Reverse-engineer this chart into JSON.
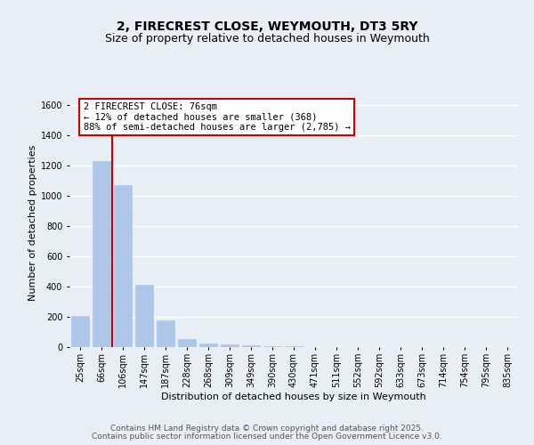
{
  "title_line1": "2, FIRECREST CLOSE, WEYMOUTH, DT3 5RY",
  "title_line2": "Size of property relative to detached houses in Weymouth",
  "xlabel": "Distribution of detached houses by size in Weymouth",
  "ylabel": "Number of detached properties",
  "categories": [
    "25sqm",
    "66sqm",
    "106sqm",
    "147sqm",
    "187sqm",
    "228sqm",
    "268sqm",
    "309sqm",
    "349sqm",
    "390sqm",
    "430sqm",
    "471sqm",
    "511sqm",
    "552sqm",
    "592sqm",
    "633sqm",
    "673sqm",
    "714sqm",
    "754sqm",
    "795sqm",
    "835sqm"
  ],
  "values": [
    205,
    1230,
    1070,
    415,
    178,
    52,
    25,
    15,
    10,
    5,
    3,
    2,
    1,
    1,
    1,
    1,
    0,
    0,
    0,
    0,
    0
  ],
  "bar_color": "#aec6e8",
  "bar_edge_color": "#aec6e8",
  "property_line_x": 1.5,
  "annotation_title": "2 FIRECREST CLOSE: 76sqm",
  "annotation_line1": "← 12% of detached houses are smaller (368)",
  "annotation_line2": "88% of semi-detached houses are larger (2,785) →",
  "annotation_box_facecolor": "#ffffff",
  "annotation_box_edgecolor": "#cc0000",
  "ylim": [
    0,
    1650
  ],
  "yticks": [
    0,
    200,
    400,
    600,
    800,
    1000,
    1200,
    1400,
    1600
  ],
  "footer_line1": "Contains HM Land Registry data © Crown copyright and database right 2025.",
  "footer_line2": "Contains public sector information licensed under the Open Government Licence v3.0.",
  "bg_color": "#e8eef5",
  "plot_bg_color": "#e8eef5",
  "grid_color": "#ffffff",
  "title_fontsize": 10,
  "subtitle_fontsize": 9,
  "axis_label_fontsize": 8,
  "tick_fontsize": 7,
  "annotation_fontsize": 7.5,
  "footer_fontsize": 6.5,
  "red_line_color": "#cc0000"
}
